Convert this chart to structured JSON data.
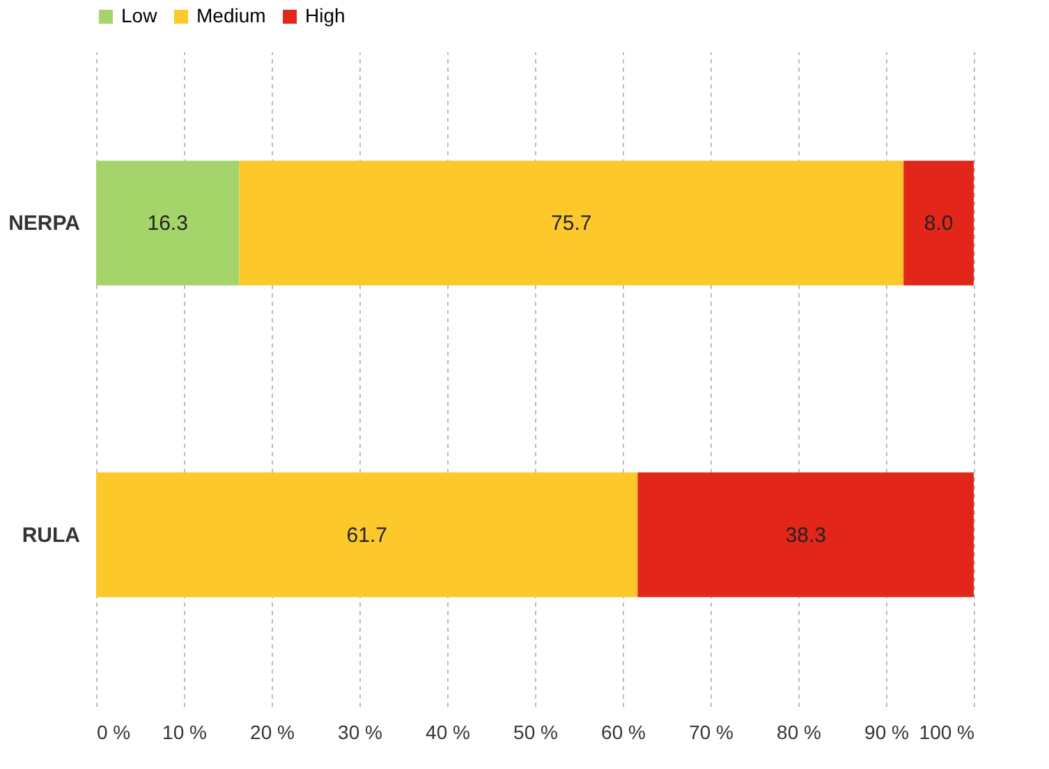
{
  "chart_data": {
    "type": "bar",
    "orientation": "horizontal",
    "stacked": true,
    "categories": [
      "NERPA",
      "RULA"
    ],
    "series": [
      {
        "name": "Low",
        "color": "#a5d46a",
        "values": [
          16.3,
          null
        ],
        "value_labels": [
          "16.3",
          null
        ]
      },
      {
        "name": "Medium",
        "color": "#fdc82a",
        "values": [
          75.7,
          61.7
        ],
        "value_labels": [
          "75.7",
          "61.7"
        ]
      },
      {
        "name": "High",
        "color": "#e3261a",
        "values": [
          8.0,
          38.3
        ],
        "value_labels": [
          "8.0",
          "38.3"
        ]
      }
    ],
    "xlim": [
      0,
      100
    ],
    "xticks": [
      {
        "value": 0,
        "label": "0 %"
      },
      {
        "value": 10,
        "label": "10 %"
      },
      {
        "value": 20,
        "label": "20 %"
      },
      {
        "value": 30,
        "label": "30 %"
      },
      {
        "value": 40,
        "label": "40 %"
      },
      {
        "value": 50,
        "label": "50 %"
      },
      {
        "value": 60,
        "label": "60 %"
      },
      {
        "value": 70,
        "label": "70 %"
      },
      {
        "value": 80,
        "label": "80 %"
      },
      {
        "value": 90,
        "label": "90 %"
      },
      {
        "value": 100,
        "label": "100 %"
      }
    ],
    "grid": "x",
    "legend": "top"
  }
}
